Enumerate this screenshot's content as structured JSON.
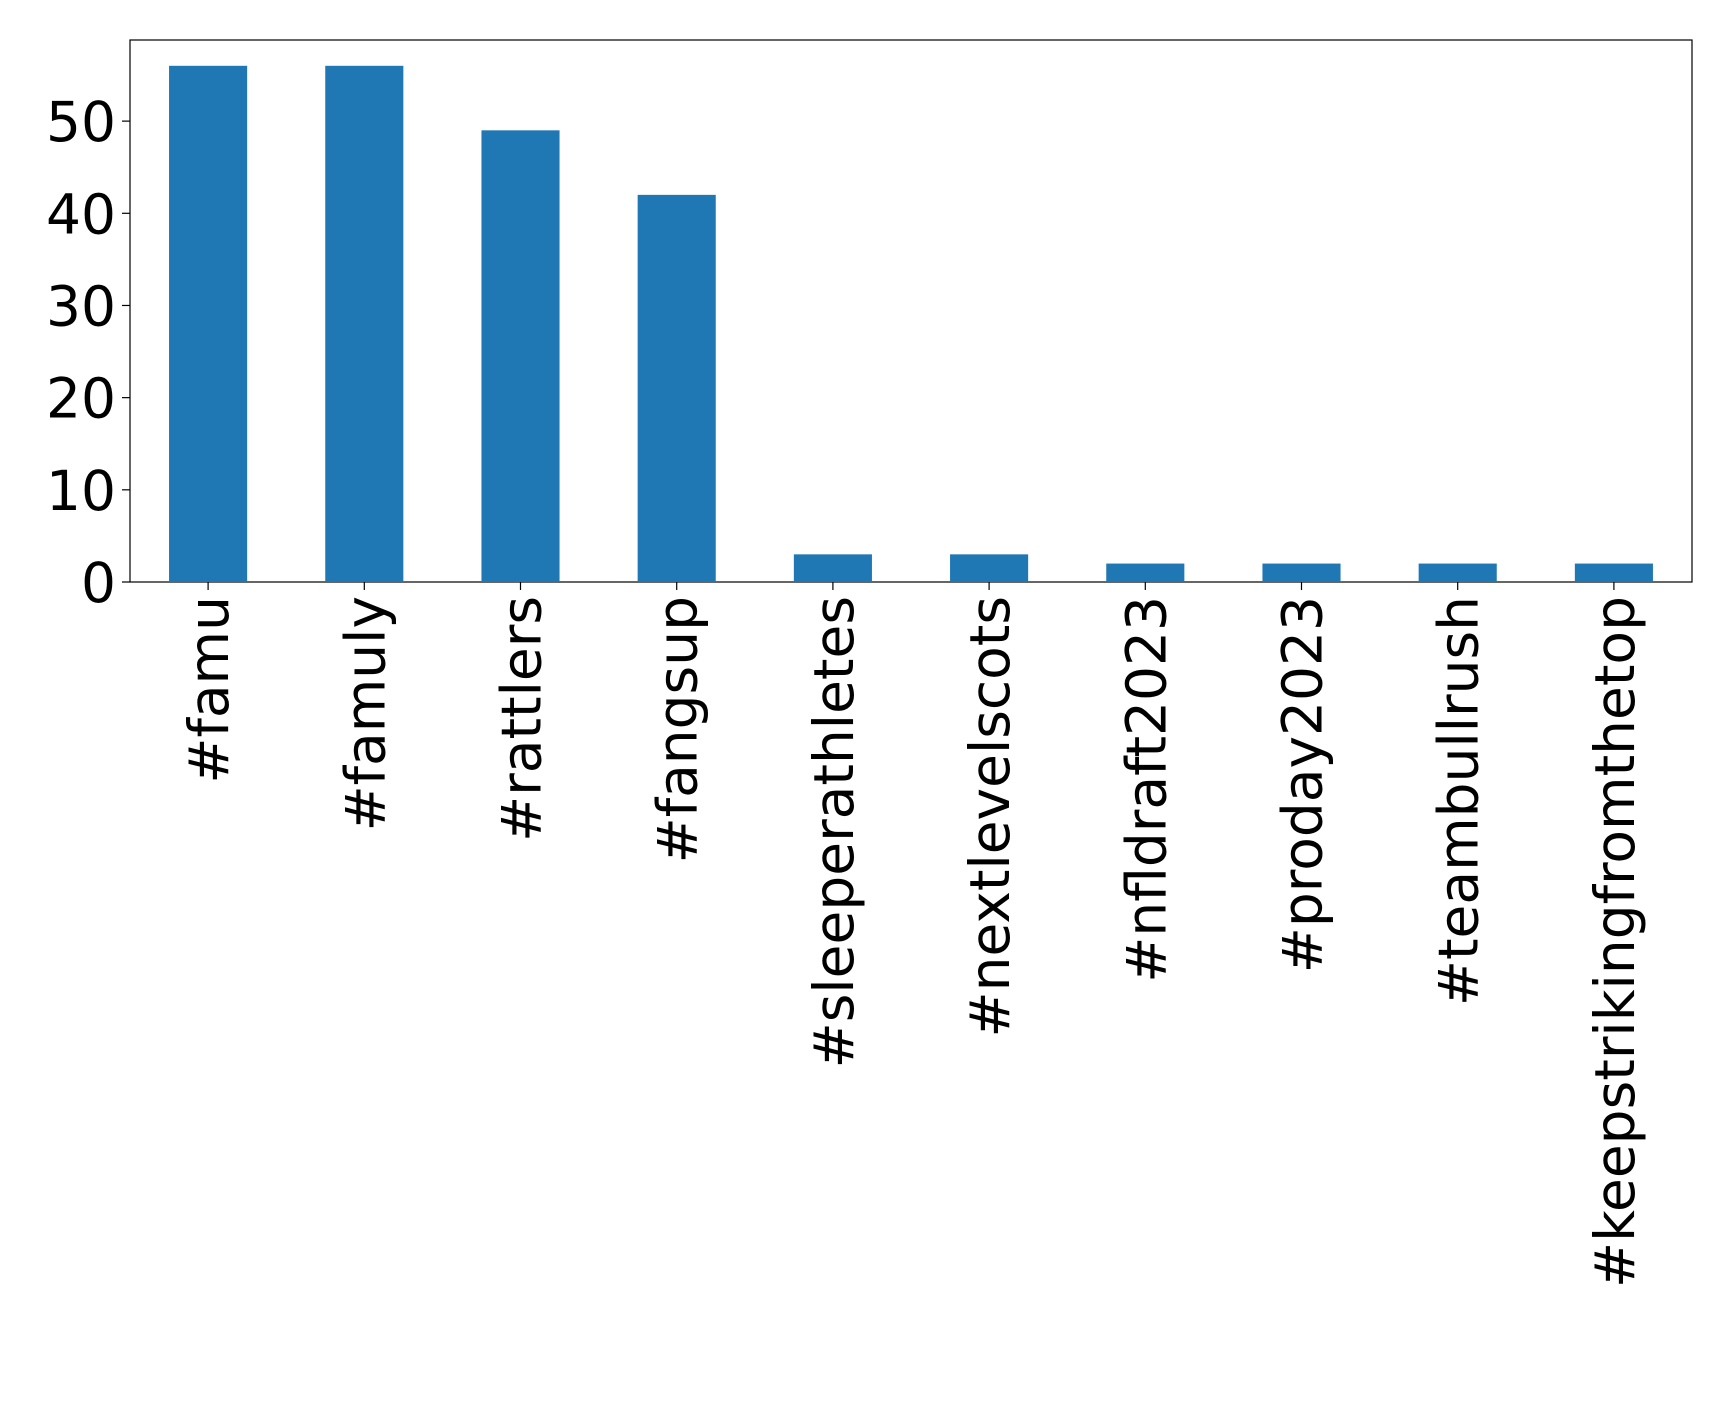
{
  "chart_data": {
    "type": "bar",
    "categories": [
      "#famu",
      "#famuly",
      "#rattlers",
      "#fangsup",
      "#sleeperathletes",
      "#nextlevelscots",
      "#nfldraft2023",
      "#proday2023",
      "#teambullrush",
      "#keepstrikingfromthetop"
    ],
    "values": [
      56,
      56,
      49,
      42,
      3,
      3,
      2,
      2,
      2,
      2
    ],
    "color": "#1f77b4",
    "ylim": [
      0,
      58.8
    ],
    "yticks": [
      0,
      10,
      20,
      30,
      40,
      50
    ],
    "grid": false
  }
}
